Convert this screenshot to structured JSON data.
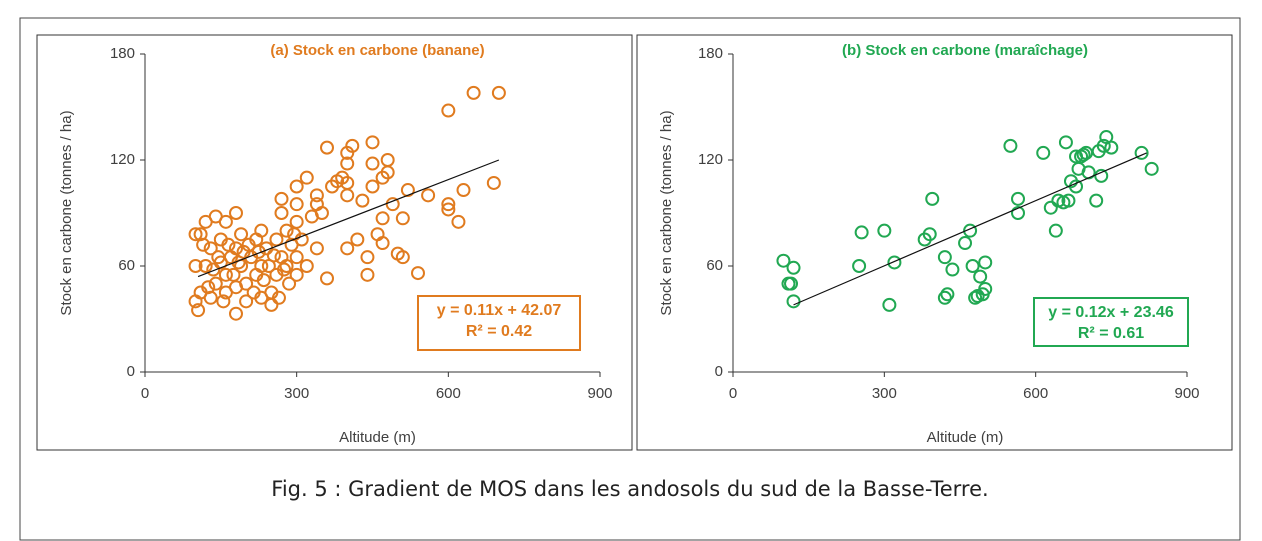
{
  "chart_data": [
    {
      "type": "scatter",
      "title": "(a) Stock en carbone (banane)",
      "xlabel": "Altitude (m)",
      "ylabel": "Stock en carbone (tonnes / ha)",
      "color": "#e07b1f",
      "xlim": [
        0,
        900
      ],
      "ylim": [
        0,
        180
      ],
      "xticks": [
        0,
        300,
        600,
        900
      ],
      "yticks": [
        0,
        60,
        120,
        180
      ],
      "annotation": [
        "y = 0.11x + 42.07",
        "R² = 0.42"
      ],
      "trendline": {
        "x": [
          105,
          700
        ],
        "y": [
          54,
          120
        ]
      },
      "x": [
        600,
        650,
        700,
        690,
        630,
        620,
        600,
        600,
        560,
        540,
        520,
        510,
        510,
        500,
        490,
        480,
        480,
        470,
        470,
        470,
        460,
        450,
        450,
        450,
        440,
        440,
        430,
        420,
        410,
        400,
        400,
        400,
        400,
        400,
        390,
        380,
        370,
        360,
        360,
        350,
        340,
        340,
        330,
        320,
        310,
        300,
        300,
        300,
        300,
        300,
        290,
        280,
        280,
        270,
        270,
        260,
        260,
        250,
        250,
        240,
        230,
        230,
        230,
        220,
        220,
        210,
        200,
        200,
        190,
        190,
        180,
        180,
        180,
        180,
        170,
        160,
        160,
        160,
        150,
        150,
        140,
        140,
        130,
        130,
        120,
        120,
        110,
        110,
        100,
        100,
        100,
        105,
        115,
        125,
        135,
        145,
        155,
        165,
        175,
        185,
        195,
        205,
        215,
        225,
        235,
        245,
        255,
        265,
        275,
        285,
        295,
        270,
        320,
        340
      ],
      "values": [
        148,
        158,
        158,
        107,
        103,
        85,
        92,
        95,
        100,
        56,
        103,
        87,
        65,
        67,
        95,
        120,
        113,
        110,
        87,
        73,
        78,
        130,
        118,
        105,
        65,
        55,
        97,
        75,
        128,
        124,
        118,
        107,
        100,
        70,
        110,
        108,
        105,
        127,
        53,
        90,
        100,
        95,
        88,
        110,
        75,
        105,
        95,
        85,
        65,
        55,
        72,
        80,
        60,
        98,
        90,
        75,
        55,
        45,
        38,
        70,
        80,
        60,
        42,
        75,
        55,
        65,
        50,
        40,
        78,
        60,
        90,
        70,
        48,
        33,
        65,
        85,
        55,
        45,
        75,
        62,
        88,
        50,
        70,
        42,
        85,
        60,
        78,
        45,
        78,
        60,
        40,
        35,
        72,
        48,
        58,
        65,
        40,
        72,
        55,
        62,
        68,
        72,
        45,
        68,
        52,
        60,
        66,
        42,
        58,
        50,
        78,
        65,
        60,
        70
      ]
    },
    {
      "type": "scatter",
      "title": "(b) Stock en carbone (maraîchage)",
      "xlabel": "Altitude (m)",
      "ylabel": "Stock en carbone (tonnes / ha)",
      "color": "#21a852",
      "xlim": [
        0,
        900
      ],
      "ylim": [
        0,
        180
      ],
      "xticks": [
        0,
        300,
        600,
        900
      ],
      "yticks": [
        0,
        60,
        120,
        180
      ],
      "annotation": [
        "y = 0.12x + 23.46",
        "R² = 0.61"
      ],
      "trendline": {
        "x": [
          120,
          820
        ],
        "y": [
          38,
          124
        ]
      },
      "x": [
        100,
        110,
        115,
        120,
        120,
        250,
        255,
        300,
        310,
        320,
        380,
        390,
        395,
        420,
        420,
        425,
        435,
        460,
        470,
        475,
        480,
        485,
        490,
        495,
        500,
        500,
        550,
        565,
        565,
        615,
        630,
        640,
        645,
        655,
        660,
        665,
        670,
        680,
        680,
        685,
        690,
        695,
        700,
        705,
        720,
        725,
        730,
        735,
        740,
        750,
        810,
        830
      ],
      "values": [
        63,
        50,
        50,
        40,
        59,
        60,
        79,
        80,
        38,
        62,
        75,
        78,
        98,
        65,
        42,
        44,
        58,
        73,
        80,
        60,
        42,
        43,
        54,
        44,
        47,
        62,
        128,
        98,
        90,
        124,
        93,
        80,
        97,
        96,
        130,
        97,
        108,
        105,
        122,
        115,
        122,
        123,
        124,
        113,
        97,
        125,
        111,
        128,
        133,
        127,
        124,
        115
      ]
    }
  ],
  "caption": "Fig. 5 : Gradient de MOS dans les andosols du sud de la Basse-Terre."
}
